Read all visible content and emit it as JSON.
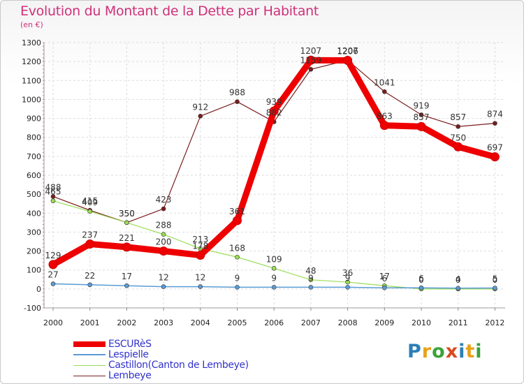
{
  "title": "Evolution du Montant de la Dette par Habitant",
  "unit": "(en €)",
  "brand": {
    "letters": [
      "P",
      "r",
      "o",
      "x",
      "i",
      "t",
      "i"
    ],
    "colors": [
      "#2c7fb8",
      "#e8a21a",
      "#3aa23a",
      "#d94a1f",
      "#2c7fb8",
      "#e8a21a",
      "#3aa23a"
    ]
  },
  "chart_data": {
    "type": "line",
    "categories": [
      "2000",
      "2001",
      "2002",
      "2003",
      "2004",
      "2005",
      "2006",
      "2007",
      "2008",
      "2009",
      "2010",
      "2011",
      "2012"
    ],
    "ylim": [
      -100,
      1300
    ],
    "yticks": [
      -100,
      0,
      100,
      200,
      300,
      400,
      500,
      600,
      700,
      800,
      900,
      1000,
      1100,
      1200,
      1300
    ],
    "grid": true,
    "legend_position": "bottom-left",
    "series": [
      {
        "name": "ESCURèS",
        "color": "#ee0000",
        "width": 9,
        "marker": 6,
        "values": [
          129,
          237,
          221,
          200,
          178,
          361,
          939,
          1207,
          1206,
          863,
          857,
          750,
          697
        ],
        "labels": [
          "129",
          "237",
          "221",
          "200",
          "178",
          "361",
          "939",
          "1207",
          "1206",
          "863",
          "857",
          "750",
          "697"
        ]
      },
      {
        "name": "Lespielle",
        "color": "#5b9bd5",
        "width": 1.5,
        "marker": 3,
        "values": [
          27,
          22,
          17,
          12,
          12,
          9,
          9,
          9,
          9,
          6,
          6,
          4,
          5
        ],
        "labels": [
          "27",
          "22",
          "17",
          "12",
          "12",
          "9",
          "9",
          "9",
          "9",
          "6",
          "6",
          "4",
          "5"
        ]
      },
      {
        "name": "Castillon(Canton de Lembeye)",
        "color": "#99dd55",
        "width": 1.2,
        "marker": 3,
        "values": [
          465,
          409,
          350,
          288,
          213,
          168,
          109,
          48,
          36,
          17,
          0,
          0,
          0
        ],
        "labels": [
          "465",
          "409",
          "350",
          "288",
          "213",
          "168",
          "109",
          "48",
          "36",
          "17",
          "0",
          "0",
          "0"
        ]
      },
      {
        "name": "Lembeye",
        "color": "#7a1e1e",
        "width": 1.2,
        "marker": 3,
        "values": [
          488,
          415,
          350,
          423,
          912,
          988,
          882,
          1159,
          1207,
          1041,
          919,
          857,
          874
        ],
        "labels": [
          "488",
          "415",
          "350",
          "423",
          "912",
          "988",
          "882",
          "1159",
          "1207",
          "1041",
          "919",
          "857",
          "874"
        ]
      }
    ]
  }
}
